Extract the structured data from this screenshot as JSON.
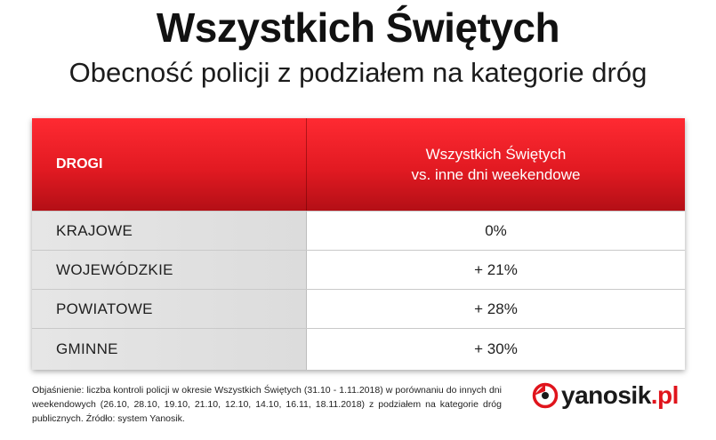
{
  "title": "Wszystkich Świętych",
  "subtitle": "Obecność policji z podziałem na kategorie dróg",
  "table": {
    "header_left": "DROGI",
    "header_right_line1": "Wszystkich Świętych",
    "header_right_line2": "vs. inne dni weekendowe",
    "rows": [
      {
        "road": "KRAJOWE",
        "value": "0%"
      },
      {
        "road": "WOJEWÓDZKIE",
        "value": "+ 21%"
      },
      {
        "road": "POWIATOWE",
        "value": "+ 28%"
      },
      {
        "road": "GMINNE",
        "value": "+ 30%"
      }
    ]
  },
  "note": "Objaśnienie: liczba kontroli policji w okresie Wszystkich Świętych (31.10 - 1.11.2018) w porównaniu do innych dni weekendowych (26.10, 28.10, 19.10, 21.10, 12.10, 14.10, 16.11, 18.11.2018) z podziałem na kategorie dróg publicznych. Źródło: system Yanosik.",
  "logo": {
    "name": "yanosik",
    "tld": ".pl",
    "icon": "yanosik-logo-icon"
  },
  "colors": {
    "header_red": "#e21a22",
    "accent": "#e0141c",
    "row_gray": "#e2e2e2"
  }
}
